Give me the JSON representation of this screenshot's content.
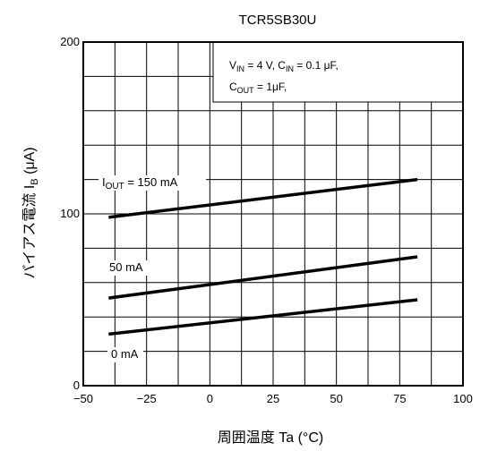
{
  "chart_data": {
    "type": "line",
    "title": "TCR5SB30U",
    "xlabel": "周囲温度 Ta (°C)",
    "ylabel": "バイアス電流 IB (μA)",
    "xlim": [
      -50,
      100
    ],
    "ylim": [
      0,
      200
    ],
    "x_ticks": [
      "−50",
      "−25",
      "0",
      "25",
      "50",
      "75",
      "100"
    ],
    "y_ticks": [
      "0",
      "100",
      "200"
    ],
    "x_ticks_values": [
      -50,
      -25,
      0,
      25,
      50,
      75,
      100
    ],
    "y_ticks_values": [
      0,
      100,
      200
    ],
    "grid": true,
    "conditions": {
      "line1": "VIN = 4 V, CIN = 0.1 μF,",
      "line2": "COUT = 1μF,"
    },
    "series": [
      {
        "name": "IOUT = 150 mA",
        "x": [
          -40,
          82
        ],
        "y": [
          98,
          120
        ]
      },
      {
        "name": "50 mA",
        "x": [
          -40,
          82
        ],
        "y": [
          51,
          75
        ]
      },
      {
        "name": "0 mA",
        "x": [
          -40,
          82
        ],
        "y": [
          30,
          50
        ]
      }
    ]
  }
}
